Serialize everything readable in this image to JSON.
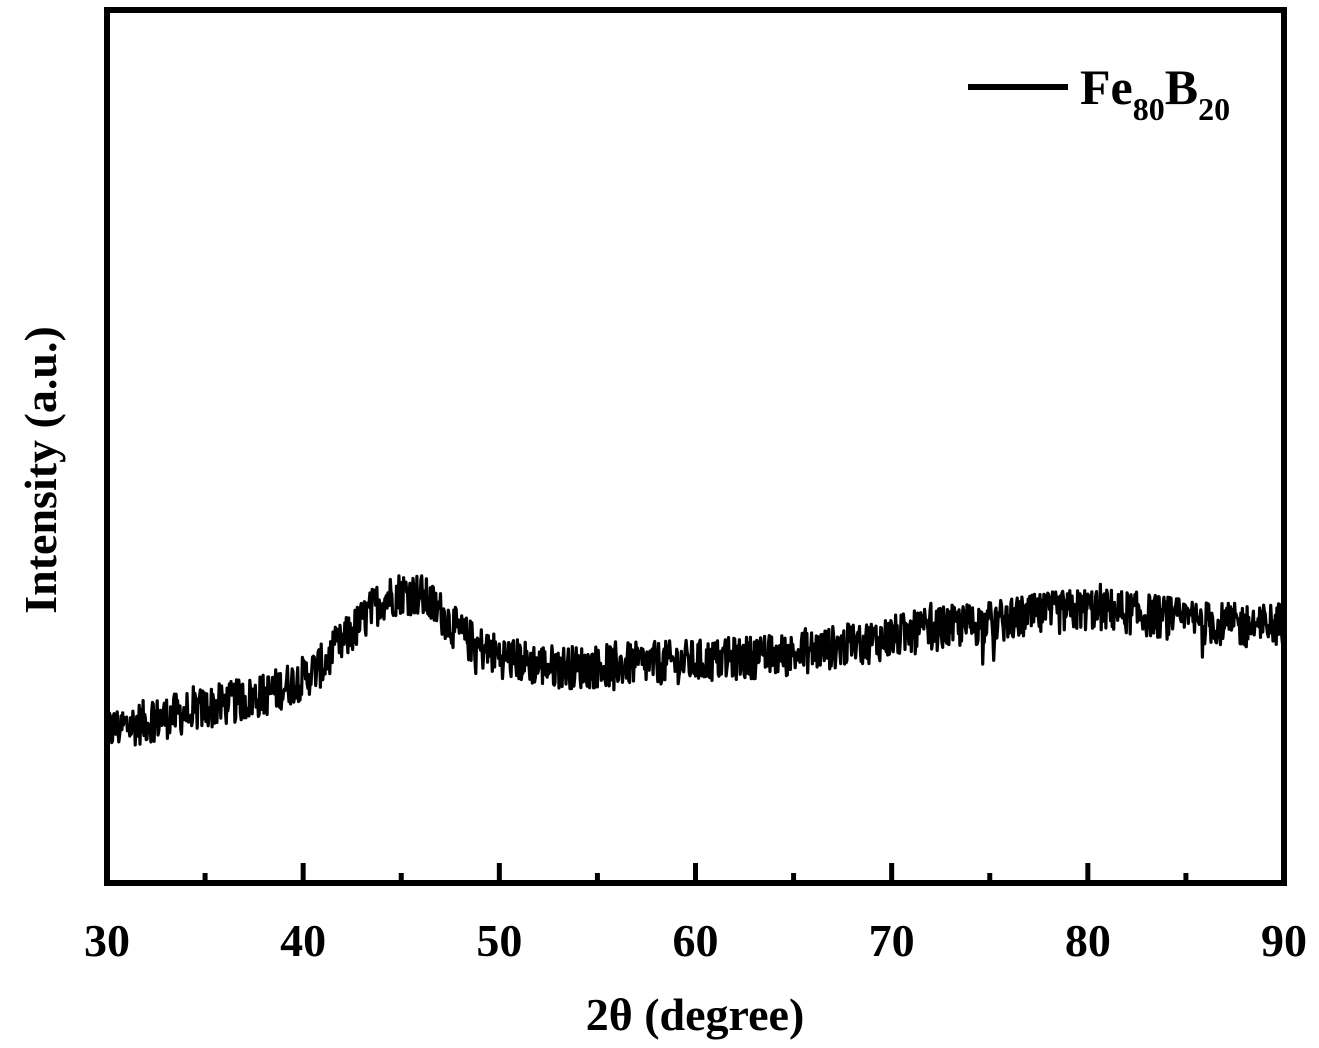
{
  "chart_data": {
    "type": "line",
    "title": "",
    "xlabel": "2θ (degree)",
    "ylabel": "Intensity (a.u.)",
    "xlim": [
      30,
      90
    ],
    "ylim": [
      0,
      100
    ],
    "x_ticks": [
      "30",
      "40",
      "50",
      "60",
      "70",
      "80",
      "90"
    ],
    "x_minor_ticks": [
      35,
      45,
      55,
      65,
      75,
      85
    ],
    "y_ticks_labeled": false,
    "grid": false,
    "legend_position": "top-right",
    "line_color": "#000000",
    "legend": {
      "main": "Fe",
      "sub1": "80",
      "mid": "B",
      "sub2": "20"
    },
    "series": [
      {
        "name": "Fe80B20",
        "x": [
          30,
          31,
          32,
          33,
          34,
          35,
          36,
          37,
          38,
          39,
          40,
          41,
          42,
          43,
          44,
          45,
          46,
          47,
          48,
          49,
          50,
          51,
          52,
          53,
          54,
          55,
          56,
          57,
          58,
          59,
          60,
          61,
          62,
          63,
          64,
          65,
          66,
          67,
          68,
          69,
          70,
          71,
          72,
          73,
          74,
          75,
          76,
          77,
          78,
          79,
          80,
          81,
          82,
          83,
          84,
          85,
          86,
          87,
          88,
          89,
          90
        ],
        "y": [
          17.5,
          18.0,
          18.5,
          19.0,
          19.5,
          20.0,
          20.5,
          21.0,
          21.5,
          22.5,
          23.5,
          25.0,
          27.5,
          30.0,
          32.5,
          33.3,
          33.0,
          31.0,
          28.5,
          27.0,
          26.0,
          25.5,
          25.0,
          24.8,
          24.7,
          24.8,
          25.0,
          25.1,
          25.2,
          25.3,
          25.4,
          25.5,
          25.7,
          25.9,
          26.0,
          26.2,
          26.6,
          27.0,
          27.3,
          27.7,
          28.2,
          28.6,
          29.0,
          29.3,
          29.6,
          29.8,
          30.2,
          30.5,
          30.8,
          31.1,
          31.4,
          31.3,
          31.0,
          30.7,
          30.4,
          30.1,
          29.8,
          29.6,
          29.5,
          29.6,
          29.8
        ]
      }
    ]
  }
}
